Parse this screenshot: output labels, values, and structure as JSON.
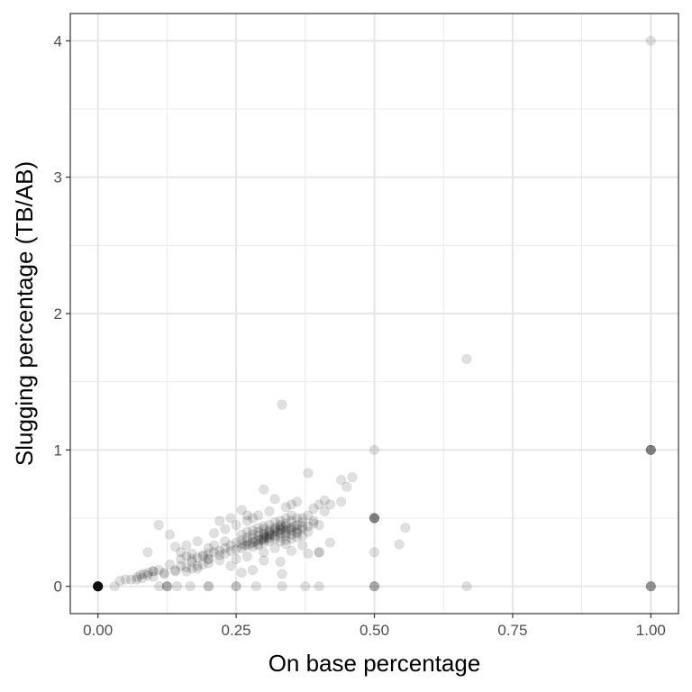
{
  "chart_data": {
    "type": "scatter",
    "title": "",
    "xlabel": "On base percentage",
    "ylabel": "Slugging percentage (TB/AB)",
    "xlim": [
      -0.05,
      1.05
    ],
    "ylim": [
      -0.2,
      4.2
    ],
    "x_ticks": [
      0,
      0.25,
      0.5,
      0.75,
      1.0
    ],
    "x_tick_labels": [
      "0.00",
      "0.25",
      "0.50",
      "0.75",
      "1.00"
    ],
    "y_ticks": [
      0,
      1,
      2,
      3,
      4
    ],
    "y_tick_labels": [
      "0",
      "1",
      "2",
      "3",
      "4"
    ],
    "grid": true,
    "point_color": "#000000",
    "point_alpha": 0.12,
    "series": [
      {
        "points": [
          [
            0,
            0
          ],
          [
            0,
            0
          ],
          [
            0,
            0
          ],
          [
            0,
            0
          ],
          [
            0,
            0
          ],
          [
            0,
            0
          ],
          [
            0,
            0
          ],
          [
            0,
            0
          ],
          [
            0,
            0
          ],
          [
            0,
            0
          ],
          [
            0,
            0
          ],
          [
            0,
            0
          ],
          [
            0,
            0
          ],
          [
            0,
            0
          ],
          [
            0,
            0
          ],
          [
            0,
            0
          ],
          [
            0,
            0
          ],
          [
            0,
            0
          ],
          [
            0,
            0
          ],
          [
            0,
            0
          ],
          [
            1,
            4
          ],
          [
            1,
            1
          ],
          [
            1,
            1
          ],
          [
            1,
            1
          ],
          [
            1,
            1
          ],
          [
            1,
            1
          ],
          [
            1,
            0
          ],
          [
            1,
            0
          ],
          [
            1,
            0
          ],
          [
            1,
            0
          ],
          [
            0.667,
            1.667
          ],
          [
            0.333,
            1.333
          ],
          [
            0.5,
            1.0
          ],
          [
            0.5,
            0.5
          ],
          [
            0.5,
            0.5
          ],
          [
            0.5,
            0.5
          ],
          [
            0.5,
            0.5
          ],
          [
            0.5,
            0.5
          ],
          [
            0.5,
            0.25
          ],
          [
            0.5,
            0
          ],
          [
            0.5,
            0
          ],
          [
            0.5,
            0
          ],
          [
            0.667,
            0
          ],
          [
            0.556,
            0.429
          ],
          [
            0.545,
            0.308
          ],
          [
            0.4,
            0.25
          ],
          [
            0.4,
            0.25
          ],
          [
            0.4,
            0
          ],
          [
            0.375,
            0
          ],
          [
            0.333,
            0
          ],
          [
            0.333,
            0.091
          ],
          [
            0.286,
            0
          ],
          [
            0.25,
            0
          ],
          [
            0.25,
            0
          ],
          [
            0.2,
            0
          ],
          [
            0.2,
            0
          ],
          [
            0.2,
            0.2
          ],
          [
            0.2,
            0.2
          ],
          [
            0.167,
            0
          ],
          [
            0.143,
            0
          ],
          [
            0.125,
            0
          ],
          [
            0.125,
            0
          ],
          [
            0.125,
            0
          ],
          [
            0.111,
            0
          ],
          [
            0.1,
            0.111
          ],
          [
            0.1,
            0.111
          ],
          [
            0.091,
            0.1
          ],
          [
            0.083,
            0.091
          ],
          [
            0.077,
            0.083
          ],
          [
            0.071,
            0.067
          ],
          [
            0.06,
            0.05
          ],
          [
            0.05,
            0.05
          ],
          [
            0.04,
            0.04
          ],
          [
            0.03,
            0
          ],
          [
            0.38,
            0.83
          ],
          [
            0.3,
            0.71
          ],
          [
            0.32,
            0.64
          ],
          [
            0.35,
            0.6
          ],
          [
            0.44,
            0.78
          ],
          [
            0.46,
            0.8
          ],
          [
            0.45,
            0.73
          ],
          [
            0.41,
            0.63
          ],
          [
            0.42,
            0.6
          ],
          [
            0.44,
            0.62
          ],
          [
            0.42,
            0.32
          ],
          [
            0.38,
            0.24
          ],
          [
            0.3,
            0.19
          ],
          [
            0.33,
            0.18
          ],
          [
            0.24,
            0.5
          ],
          [
            0.27,
            0.52
          ],
          [
            0.22,
            0.48
          ],
          [
            0.11,
            0.45
          ],
          [
            0.13,
            0.38
          ],
          [
            0.09,
            0.25
          ],
          [
            0.15,
            0.25
          ],
          [
            0.16,
            0.3
          ],
          [
            0.18,
            0.33
          ],
          [
            0.14,
            0.29
          ],
          [
            0.2,
            0.28
          ],
          [
            0.21,
            0.3
          ],
          [
            0.23,
            0.33
          ],
          [
            0.19,
            0.22
          ],
          [
            0.17,
            0.18
          ],
          [
            0.15,
            0.15
          ],
          [
            0.14,
            0.12
          ],
          [
            0.12,
            0.1
          ],
          [
            0.13,
            0.16
          ],
          [
            0.17,
            0.2
          ],
          [
            0.16,
            0.14
          ],
          [
            0.1,
            0.07
          ],
          [
            0.08,
            0.06
          ],
          [
            0.07,
            0.05
          ],
          [
            0.09,
            0.08
          ],
          [
            0.11,
            0.12
          ],
          [
            0.12,
            0.09
          ],
          [
            0.14,
            0.11
          ],
          [
            0.18,
            0.13
          ],
          [
            0.22,
            0.19
          ],
          [
            0.24,
            0.15
          ],
          [
            0.26,
            0.1
          ],
          [
            0.28,
            0.12
          ],
          [
            0.25,
            0.2
          ],
          [
            0.3,
            0.25
          ],
          [
            0.27,
            0.22
          ],
          [
            0.35,
            0.26
          ],
          [
            0.37,
            0.3
          ],
          [
            0.34,
            0.31
          ],
          [
            0.32,
            0.28
          ],
          [
            0.29,
            0.3
          ],
          [
            0.36,
            0.62
          ],
          [
            0.34,
            0.58
          ],
          [
            0.31,
            0.55
          ],
          [
            0.29,
            0.52
          ],
          [
            0.27,
            0.48
          ],
          [
            0.25,
            0.45
          ],
          [
            0.23,
            0.42
          ],
          [
            0.21,
            0.39
          ],
          [
            0.26,
            0.56
          ],
          [
            0.28,
            0.5
          ],
          [
            0.39,
            0.57
          ],
          [
            0.4,
            0.6
          ],
          [
            0.41,
            0.55
          ],
          [
            0.38,
            0.52
          ],
          [
            0.37,
            0.5
          ],
          [
            0.39,
            0.46
          ],
          [
            0.4,
            0.45
          ],
          [
            0.37,
            0.44
          ],
          [
            0.36,
            0.42
          ],
          [
            0.38,
            0.4
          ],
          [
            0.35,
            0.38
          ],
          [
            0.33,
            0.36
          ],
          [
            0.34,
            0.34
          ],
          [
            0.36,
            0.36
          ],
          [
            0.31,
            0.33
          ],
          [
            0.3,
            0.34
          ],
          [
            0.32,
            0.4
          ],
          [
            0.33,
            0.42
          ],
          [
            0.31,
            0.45
          ],
          [
            0.3,
            0.42
          ],
          [
            0.29,
            0.4
          ],
          [
            0.28,
            0.38
          ],
          [
            0.27,
            0.36
          ],
          [
            0.26,
            0.34
          ],
          [
            0.25,
            0.32
          ],
          [
            0.24,
            0.3
          ],
          [
            0.23,
            0.28
          ],
          [
            0.22,
            0.26
          ],
          [
            0.21,
            0.25
          ],
          [
            0.2,
            0.24
          ],
          [
            0.19,
            0.23
          ],
          [
            0.18,
            0.21
          ],
          [
            0.17,
            0.24
          ],
          [
            0.16,
            0.22
          ],
          [
            0.15,
            0.2
          ],
          [
            0.35,
            0.48
          ],
          [
            0.34,
            0.46
          ],
          [
            0.33,
            0.44
          ],
          [
            0.32,
            0.43
          ],
          [
            0.31,
            0.41
          ],
          [
            0.3,
            0.39
          ],
          [
            0.29,
            0.37
          ],
          [
            0.28,
            0.35
          ],
          [
            0.27,
            0.33
          ],
          [
            0.26,
            0.31
          ],
          [
            0.36,
            0.5
          ],
          [
            0.35,
            0.52
          ],
          [
            0.34,
            0.5
          ],
          [
            0.33,
            0.48
          ],
          [
            0.32,
            0.47
          ],
          [
            0.31,
            0.38
          ],
          [
            0.3,
            0.36
          ],
          [
            0.29,
            0.34
          ],
          [
            0.28,
            0.32
          ],
          [
            0.27,
            0.3
          ],
          [
            0.33,
            0.39
          ],
          [
            0.34,
            0.41
          ],
          [
            0.35,
            0.43
          ],
          [
            0.36,
            0.45
          ],
          [
            0.37,
            0.47
          ],
          [
            0.32,
            0.37
          ],
          [
            0.31,
            0.35
          ],
          [
            0.3,
            0.32
          ],
          [
            0.29,
            0.31
          ],
          [
            0.28,
            0.29
          ],
          [
            0.34,
            0.44
          ],
          [
            0.33,
            0.45
          ],
          [
            0.32,
            0.42
          ],
          [
            0.31,
            0.4
          ],
          [
            0.3,
            0.38
          ],
          [
            0.35,
            0.41
          ],
          [
            0.36,
            0.4
          ],
          [
            0.37,
            0.42
          ],
          [
            0.38,
            0.44
          ],
          [
            0.39,
            0.48
          ],
          [
            0.26,
            0.28
          ],
          [
            0.25,
            0.27
          ],
          [
            0.24,
            0.26
          ],
          [
            0.23,
            0.24
          ],
          [
            0.22,
            0.23
          ],
          [
            0.2,
            0.17
          ],
          [
            0.19,
            0.16
          ],
          [
            0.18,
            0.15
          ],
          [
            0.17,
            0.13
          ],
          [
            0.16,
            0.11
          ],
          [
            0.33,
            0.33
          ],
          [
            0.34,
            0.37
          ],
          [
            0.35,
            0.35
          ],
          [
            0.36,
            0.39
          ],
          [
            0.37,
            0.37
          ],
          [
            0.3,
            0.44
          ],
          [
            0.29,
            0.43
          ],
          [
            0.28,
            0.41
          ],
          [
            0.27,
            0.4
          ],
          [
            0.26,
            0.38
          ],
          [
            0.32,
            0.35
          ],
          [
            0.31,
            0.37
          ],
          [
            0.3,
            0.35
          ],
          [
            0.33,
            0.41
          ],
          [
            0.34,
            0.39
          ],
          [
            0.325,
            0.4
          ],
          [
            0.315,
            0.38
          ],
          [
            0.335,
            0.43
          ],
          [
            0.305,
            0.36
          ],
          [
            0.295,
            0.34
          ],
          [
            0.345,
            0.42
          ],
          [
            0.355,
            0.44
          ],
          [
            0.285,
            0.33
          ],
          [
            0.275,
            0.31
          ],
          [
            0.265,
            0.3
          ]
        ]
      }
    ]
  }
}
